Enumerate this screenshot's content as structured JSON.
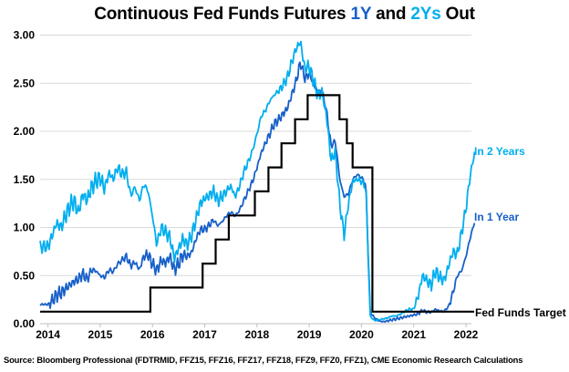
{
  "title": {
    "part1": "Continuous Fed Funds Futures ",
    "part2": "1Y",
    "part3": " and ",
    "part4": "2Ys",
    "part5": " Out"
  },
  "source": "Source: Bloomberg Professional (FDTRMID, FFZ15, FFZ16, FFZ17, FFZ18, FFZ9, FFZ0, FFZ1), CME Economic Research Calculations",
  "colors": {
    "in_1_year": "#1760C9",
    "in_2_years": "#00AEEF",
    "fed_funds_target": "#000000",
    "gridline": "#D9D9D9",
    "axis": "#BFBFBF",
    "text": "#000000"
  },
  "chart_data": {
    "type": "line",
    "title": "Continuous Fed Funds Futures 1Y and 2Ys Out",
    "xlabel": "",
    "ylabel": "",
    "ylim": [
      0.0,
      3.0
    ],
    "xlim": [
      2014,
      2022.25
    ],
    "grid": "horizontal",
    "legend_position": "inline-right-annotations",
    "y_tick_labels": [
      "0.00",
      "0.50",
      "1.00",
      "1.50",
      "2.00",
      "2.50",
      "3.00"
    ],
    "x_tick_labels": [
      "2014",
      "2015",
      "2016",
      "2017",
      "2018",
      "2019",
      "2020",
      "2021",
      "2022"
    ],
    "x_start_year": 2014,
    "x_resolution": "monthly",
    "series": [
      {
        "name": "In 2 Years",
        "color_key": "in_2_years",
        "monthly_values": [
          0.8,
          0.92,
          1.05,
          1.0,
          1.12,
          1.22,
          1.28,
          1.15,
          1.35,
          1.28,
          1.42,
          1.48,
          1.52,
          1.4,
          1.57,
          1.5,
          1.63,
          1.55,
          1.58,
          1.33,
          1.42,
          1.28,
          1.45,
          1.38,
          1.12,
          0.82,
          1.0,
          0.95,
          0.9,
          0.68,
          0.78,
          0.88,
          0.82,
          0.92,
          1.08,
          1.25,
          1.3,
          1.33,
          1.38,
          1.28,
          1.32,
          1.38,
          1.43,
          1.32,
          1.43,
          1.58,
          1.68,
          1.8,
          1.97,
          2.16,
          2.22,
          2.32,
          2.38,
          2.42,
          2.48,
          2.56,
          2.72,
          2.86,
          2.93,
          2.65,
          2.68,
          2.52,
          2.38,
          2.4,
          2.15,
          1.7,
          1.78,
          1.25,
          0.92,
          1.25,
          1.48,
          1.5,
          1.48,
          1.42,
          0.08,
          0.03,
          0.04,
          0.05,
          0.06,
          0.08,
          0.08,
          0.1,
          0.13,
          0.15,
          0.15,
          0.28,
          0.5,
          0.45,
          0.4,
          0.55,
          0.48,
          0.45,
          0.6,
          0.75,
          0.72,
          0.95,
          1.2,
          1.55,
          1.78
        ]
      },
      {
        "name": "In 1 Year",
        "color_key": "in_1_year",
        "monthly_values": [
          0.2,
          0.24,
          0.3,
          0.32,
          0.36,
          0.4,
          0.44,
          0.46,
          0.52,
          0.46,
          0.56,
          0.55,
          0.5,
          0.48,
          0.56,
          0.54,
          0.62,
          0.66,
          0.7,
          0.6,
          0.64,
          0.56,
          0.7,
          0.72,
          0.62,
          0.55,
          0.66,
          0.63,
          0.7,
          0.56,
          0.62,
          0.72,
          0.7,
          0.74,
          0.88,
          0.98,
          0.98,
          1.02,
          1.08,
          1.02,
          1.06,
          1.12,
          1.16,
          1.12,
          1.18,
          1.28,
          1.38,
          1.48,
          1.62,
          1.78,
          1.88,
          1.98,
          2.08,
          2.12,
          2.18,
          2.24,
          2.38,
          2.52,
          2.72,
          2.55,
          2.6,
          2.5,
          2.4,
          2.4,
          2.2,
          1.85,
          1.9,
          1.5,
          1.32,
          1.35,
          1.5,
          1.55,
          1.52,
          1.45,
          0.12,
          0.06,
          0.03,
          0.02,
          0.03,
          0.04,
          0.05,
          0.06,
          0.07,
          0.08,
          0.09,
          0.1,
          0.14,
          0.12,
          0.12,
          0.15,
          0.13,
          0.13,
          0.18,
          0.32,
          0.5,
          0.55,
          0.7,
          0.9,
          1.06
        ]
      },
      {
        "name": "Fed Funds Target",
        "color_key": "fed_funds_target",
        "style": "step",
        "step_points": [
          [
            2014.0,
            0.125
          ],
          [
            2015.96,
            0.375
          ],
          [
            2016.96,
            0.625
          ],
          [
            2017.21,
            0.875
          ],
          [
            2017.46,
            1.125
          ],
          [
            2017.96,
            1.375
          ],
          [
            2018.22,
            1.625
          ],
          [
            2018.47,
            1.875
          ],
          [
            2018.73,
            2.125
          ],
          [
            2018.97,
            2.375
          ],
          [
            2019.58,
            2.125
          ],
          [
            2019.72,
            1.875
          ],
          [
            2019.83,
            1.625
          ],
          [
            2020.21,
            0.125
          ]
        ],
        "end_year": 2022.17
      }
    ],
    "annotations": [
      {
        "text": "In 2 Years",
        "color_key": "in_2_years",
        "x": 2022.1,
        "y": 1.8
      },
      {
        "text": "In 1 Year",
        "color_key": "in_1_year",
        "x": 2022.1,
        "y": 1.1
      },
      {
        "text": "Fed Funds Target",
        "color_key": "fed_funds_target",
        "x": 2022.1,
        "y": 0.125
      }
    ]
  }
}
